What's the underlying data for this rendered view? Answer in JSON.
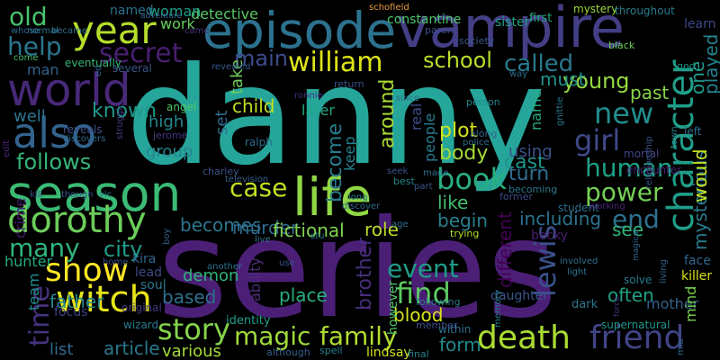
{
  "words": [
    {
      "text": "danny",
      "color": "#26a69a"
    },
    {
      "text": "series",
      "color": "#4a1f75"
    },
    {
      "text": "vampire",
      "color": "#433e85"
    },
    {
      "text": "episode",
      "color": "#2c728e"
    },
    {
      "text": "life",
      "color": "#8fd744"
    },
    {
      "text": "season",
      "color": "#3bbb75"
    },
    {
      "text": "character",
      "color": "#1f9e89"
    },
    {
      "text": "world",
      "color": "#482878"
    },
    {
      "text": "year",
      "color": "#b5de2b"
    },
    {
      "text": "also",
      "color": "#33638d"
    },
    {
      "text": "witch",
      "color": "#e7e419"
    },
    {
      "text": "dorothy",
      "color": "#6ccd5a"
    },
    {
      "text": "show",
      "color": "#fde725"
    },
    {
      "text": "death",
      "color": "#aadc32"
    },
    {
      "text": "book",
      "color": "#29af7f"
    },
    {
      "text": "story",
      "color": "#84d44b"
    },
    {
      "text": "friend",
      "color": "#414487"
    },
    {
      "text": "william",
      "color": "#dde318"
    },
    {
      "text": "secret",
      "color": "#481f70"
    },
    {
      "text": "main",
      "color": "#3e4c8a"
    },
    {
      "text": "school",
      "color": "#b8de29"
    },
    {
      "text": "called",
      "color": "#2a788e"
    },
    {
      "text": "young",
      "color": "#95d840"
    },
    {
      "text": "new",
      "color": "#228c8d"
    },
    {
      "text": "girl",
      "color": "#3e4a89"
    },
    {
      "text": "human",
      "color": "#1fa187"
    },
    {
      "text": "power",
      "color": "#75d054"
    },
    {
      "text": "case",
      "color": "#c2df23"
    },
    {
      "text": "end",
      "color": "#2d718e"
    },
    {
      "text": "find",
      "color": "#5ec962"
    },
    {
      "text": "magic",
      "color": "#9fda3a"
    },
    {
      "text": "family",
      "color": "#b0dd2f"
    },
    {
      "text": "event",
      "color": "#1e9c89"
    },
    {
      "text": "lewis",
      "color": "#3b518b"
    },
    {
      "text": "time",
      "color": "#46337e"
    },
    {
      "text": "help",
      "color": "#2b758e"
    },
    {
      "text": "old",
      "color": "#4ac16d"
    },
    {
      "text": "follows",
      "color": "#35b779"
    },
    {
      "text": "known",
      "color": "#1f998a"
    },
    {
      "text": "many",
      "color": "#2fb47c"
    },
    {
      "text": "city",
      "color": "#1e9d89"
    },
    {
      "text": "around",
      "color": "#a8db34"
    },
    {
      "text": "become",
      "color": "#287c8e"
    },
    {
      "text": "becomes",
      "color": "#2a768e"
    },
    {
      "text": "murder",
      "color": "#31688e"
    },
    {
      "text": "fictional",
      "color": "#7fd34e"
    },
    {
      "text": "role",
      "color": "#bade28"
    },
    {
      "text": "plot",
      "color": "#d2e21b"
    },
    {
      "text": "body",
      "color": "#a5db36"
    },
    {
      "text": "cast",
      "color": "#1f958b"
    },
    {
      "text": "turn",
      "color": "#2e6d8e"
    },
    {
      "text": "like",
      "color": "#44bf70"
    },
    {
      "text": "begin",
      "color": "#277f8e"
    },
    {
      "text": "including",
      "color": "#2c738e"
    },
    {
      "text": "see",
      "color": "#31b57b"
    },
    {
      "text": "past",
      "color": "#88d548"
    },
    {
      "text": "often",
      "color": "#20a386"
    },
    {
      "text": "mysterious",
      "color": "#297b8e"
    },
    {
      "text": "played",
      "color": "#26828e"
    },
    {
      "text": "one",
      "color": "#1f9a8a"
    },
    {
      "text": "would",
      "color": "#c5e021"
    },
    {
      "text": "must",
      "color": "#20928c"
    },
    {
      "text": "different",
      "color": "#440154"
    },
    {
      "text": "brother",
      "color": "#472d7b"
    },
    {
      "text": "blood",
      "color": "#d5e21a"
    },
    {
      "text": "place",
      "color": "#29af7f"
    },
    {
      "text": "form",
      "color": "#23898e"
    },
    {
      "text": "based",
      "color": "#2d708e"
    },
    {
      "text": "father",
      "color": "#24868e"
    },
    {
      "text": "article",
      "color": "#2a778e"
    },
    {
      "text": "list",
      "color": "#30698e"
    },
    {
      "text": "various",
      "color": "#a2da37"
    },
    {
      "text": "detective",
      "color": "#56c667"
    },
    {
      "text": "work",
      "color": "#67cc5c"
    },
    {
      "text": "woman",
      "color": "#1f9f88"
    },
    {
      "text": "named",
      "color": "#2c728e"
    },
    {
      "text": "later",
      "color": "#22a785"
    },
    {
      "text": "constantine",
      "color": "#50c46a"
    },
    {
      "text": "sister",
      "color": "#1fa287"
    },
    {
      "text": "first",
      "color": "#25ab82"
    },
    {
      "text": "mystery",
      "color": "#9bd93c"
    },
    {
      "text": "throughout",
      "color": "#297a8e"
    },
    {
      "text": "learn",
      "color": "#3f4889"
    },
    {
      "text": "ability",
      "color": "#4e2d7c"
    },
    {
      "text": "demon",
      "color": "#2fb47c"
    },
    {
      "text": "child",
      "color": "#c0df25"
    },
    {
      "text": "high",
      "color": "#23888e"
    },
    {
      "text": "group",
      "color": "#25838e"
    },
    {
      "text": "set",
      "color": "#2e6d8e"
    },
    {
      "text": "take",
      "color": "#6ccd5a"
    },
    {
      "text": "well",
      "color": "#2c738e"
    },
    {
      "text": "man",
      "color": "#33638d"
    },
    {
      "text": "crime",
      "color": "#481b6d"
    },
    {
      "text": "team",
      "color": "#228d8d"
    },
    {
      "text": "hunter",
      "color": "#24aa83"
    },
    {
      "text": "name",
      "color": "#25ac82"
    },
    {
      "text": "using",
      "color": "#3b528b"
    },
    {
      "text": "real",
      "color": "#3c4f8a"
    },
    {
      "text": "people",
      "color": "#287d8e"
    },
    {
      "text": "keep",
      "color": "#26828e"
    },
    {
      "text": "becky",
      "color": "#481f70"
    },
    {
      "text": "however",
      "color": "#50c46a"
    },
    {
      "text": "lindsay",
      "color": "#d0e11c"
    },
    {
      "text": "ralph",
      "color": "#2e6e8e"
    },
    {
      "text": "kira",
      "color": "#31678e"
    },
    {
      "text": "soul",
      "color": "#2a778e"
    },
    {
      "text": "lead",
      "color": "#3e4989"
    },
    {
      "text": "focus",
      "color": "#414487"
    },
    {
      "text": "original",
      "color": "#453781"
    },
    {
      "text": "wizard",
      "color": "#297b8e"
    },
    {
      "text": "identity",
      "color": "#1fa088"
    },
    {
      "text": "although",
      "color": "#355f8d"
    },
    {
      "text": "spell",
      "color": "#25838e"
    },
    {
      "text": "final",
      "color": "#27808e"
    },
    {
      "text": "within",
      "color": "#2d708e"
    },
    {
      "text": "member",
      "color": "#3d4e8a"
    },
    {
      "text": "following",
      "color": "#2a788e"
    },
    {
      "text": "trying",
      "color": "#b5de2b"
    },
    {
      "text": "daughter",
      "color": "#39568c"
    },
    {
      "text": "memory",
      "color": "#287d8e"
    },
    {
      "text": "involved",
      "color": "#2d718e"
    },
    {
      "text": "light",
      "color": "#2b758e"
    },
    {
      "text": "face",
      "color": "#31668e"
    },
    {
      "text": "killer",
      "color": "#d8e219"
    },
    {
      "text": "mother",
      "color": "#34618d"
    },
    {
      "text": "mind",
      "color": "#7ad151"
    },
    {
      "text": "solve",
      "color": "#287c8e"
    },
    {
      "text": "dark",
      "color": "#2a788e"
    },
    {
      "text": "supernatural",
      "color": "#1f978b"
    },
    {
      "text": "living",
      "color": "#33638d"
    },
    {
      "text": "mortal",
      "color": "#3f4788"
    },
    {
      "text": "encounter",
      "color": "#482173"
    },
    {
      "text": "relationship",
      "color": "#3b528b"
    },
    {
      "text": "town",
      "color": "#26818e"
    },
    {
      "text": "left",
      "color": "#2f6c8e"
    },
    {
      "text": "god",
      "color": "#1f9a8a"
    },
    {
      "text": "black",
      "color": "#6ccd5a"
    },
    {
      "text": "student",
      "color": "#2d708e"
    },
    {
      "text": "becoming",
      "color": "#2a788e"
    },
    {
      "text": "former",
      "color": "#3e4989"
    },
    {
      "text": "police",
      "color": "#2f6b8e"
    },
    {
      "text": "along",
      "color": "#32658e"
    },
    {
      "text": "person",
      "color": "#24878e"
    },
    {
      "text": "since",
      "color": "#30698e"
    },
    {
      "text": "best",
      "color": "#25848e"
    },
    {
      "text": "seek",
      "color": "#3a548c"
    },
    {
      "text": "society",
      "color": "#37598c"
    },
    {
      "text": "parent",
      "color": "#3c4f8a"
    },
    {
      "text": "schofield",
      "color": "#ea9c3d"
    },
    {
      "text": "adventure",
      "color": "#32658e"
    },
    {
      "text": "came",
      "color": "#46327e"
    },
    {
      "text": "normal",
      "color": "#2b748e"
    },
    {
      "text": "became",
      "color": "#2e6f8e"
    },
    {
      "text": "whose",
      "color": "#31678e"
    },
    {
      "text": "come",
      "color": "#48c16e"
    },
    {
      "text": "eventually",
      "color": "#35b779"
    },
    {
      "text": "several",
      "color": "#39568c"
    },
    {
      "text": "angel",
      "color": "#52c569"
    },
    {
      "text": "reveals",
      "color": "#3c508b"
    },
    {
      "text": "jerome",
      "color": "#453781"
    },
    {
      "text": "struggle",
      "color": "#433d84"
    },
    {
      "text": "edit",
      "color": "#482374"
    },
    {
      "text": "discovers",
      "color": "#2f6c8e"
    },
    {
      "text": "charley",
      "color": "#3a548c"
    },
    {
      "text": "television",
      "color": "#34608d"
    },
    {
      "text": "vic",
      "color": "#2a778e"
    },
    {
      "text": "kill",
      "color": "#3e4a89"
    },
    {
      "text": "though",
      "color": "#37598c"
    },
    {
      "text": "revealed",
      "color": "#36598c"
    },
    {
      "text": "ronnie",
      "color": "#472f7d"
    },
    {
      "text": "way",
      "color": "#2e6d8e"
    },
    {
      "text": "return",
      "color": "#3b528b"
    },
    {
      "text": "stu",
      "color": "#27808e"
    },
    {
      "text": "long",
      "color": "#25848e"
    },
    {
      "text": "discover",
      "color": "#2f6b8e"
    },
    {
      "text": "part",
      "color": "#3a548c"
    },
    {
      "text": "age",
      "color": "#2d718e"
    },
    {
      "text": "boy",
      "color": "#35608d"
    },
    {
      "text": "live",
      "color": "#2b758e"
    },
    {
      "text": "use",
      "color": "#3a538b"
    },
    {
      "text": "another",
      "color": "#2c718e"
    },
    {
      "text": "home",
      "color": "#3c4f8a"
    },
    {
      "text": "ed",
      "color": "#31678e"
    },
    {
      "text": "made",
      "color": "#2d708e"
    },
    {
      "text": "working",
      "color": "#482576"
    },
    {
      "text": "gnittie",
      "color": "#2b748e"
    },
    {
      "text": "magical",
      "color": "#32648e"
    },
    {
      "text": "mia",
      "color": "#30698e"
    },
    {
      "text": "force",
      "color": "#472e7c"
    }
  ]
}
